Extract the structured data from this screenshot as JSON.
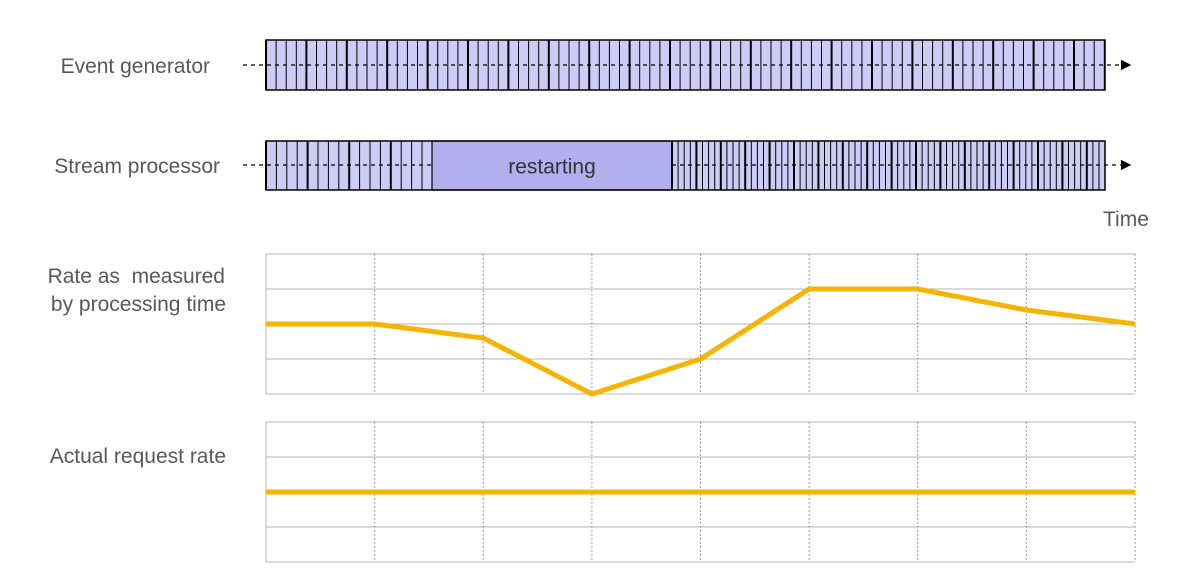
{
  "labels": {
    "event_generator": "Event generator",
    "stream_processor": "Stream processor",
    "time": "Time",
    "rate_measured_line1": "Rate as  measured",
    "rate_measured_line2": "by processing time",
    "actual_rate": "Actual request rate"
  },
  "restart_label": "restarting",
  "colors": {
    "event_fill": "#ccccf6",
    "restart_fill": "#b3aeed",
    "event_stroke": "#000000",
    "rate_line": "#f5b400",
    "grid_solid": "#b5b5b5",
    "grid_dotted": "#7a7a7a",
    "text": "#595959"
  },
  "chart_data": [
    {
      "type": "line",
      "series": [
        {
          "values": [
            2,
            2,
            1.6,
            0,
            1,
            3,
            3,
            2.4,
            2
          ]
        }
      ],
      "ylim": [
        0,
        4
      ],
      "grid": true
    },
    {
      "type": "line",
      "series": [
        {
          "values": [
            2,
            2,
            2,
            2,
            2,
            2,
            2,
            2,
            2
          ]
        }
      ],
      "ylim": [
        0,
        4
      ],
      "grid": true
    }
  ]
}
